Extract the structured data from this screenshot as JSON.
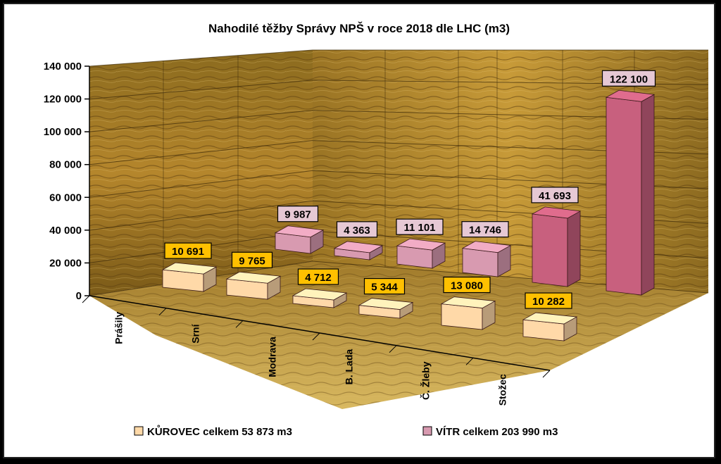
{
  "chart_data": {
    "type": "bar",
    "title": "Nahodilé těžby Správy NPŠ v roce 2018 dle LHC (m3)",
    "categories": [
      "Prášily",
      "Srní",
      "Modrava",
      "B. Lada",
      "Č. Žleby",
      "Stožec"
    ],
    "series": [
      {
        "name": "KŮROVEC celkem 53 873 m3",
        "values": [
          10691,
          9765,
          4712,
          5344,
          13080,
          10282
        ],
        "labels": [
          "10 691",
          "9 765",
          "4 712",
          "5 344",
          "13 080",
          "10 282"
        ],
        "color": "#ffd9a8",
        "label_bg": "#ffc000"
      },
      {
        "name": "VÍTR celkem 203 990 m3",
        "values": [
          9987,
          4363,
          11101,
          14746,
          41693,
          122100
        ],
        "labels": [
          "9 987",
          "4 363",
          "11 101",
          "14 746",
          "41 693",
          "122 100"
        ],
        "color": "#d89ab0",
        "label_bg": "#e6c8d4"
      }
    ],
    "ylim": [
      0,
      140000
    ],
    "yticks": [
      0,
      20000,
      40000,
      60000,
      80000,
      100000,
      120000,
      140000
    ],
    "ytick_labels": [
      "0",
      "20 000",
      "40 000",
      "60 000",
      "80 000",
      "100 000",
      "120 000",
      "140 000"
    ],
    "grid": true,
    "legend_position": "bottom"
  }
}
